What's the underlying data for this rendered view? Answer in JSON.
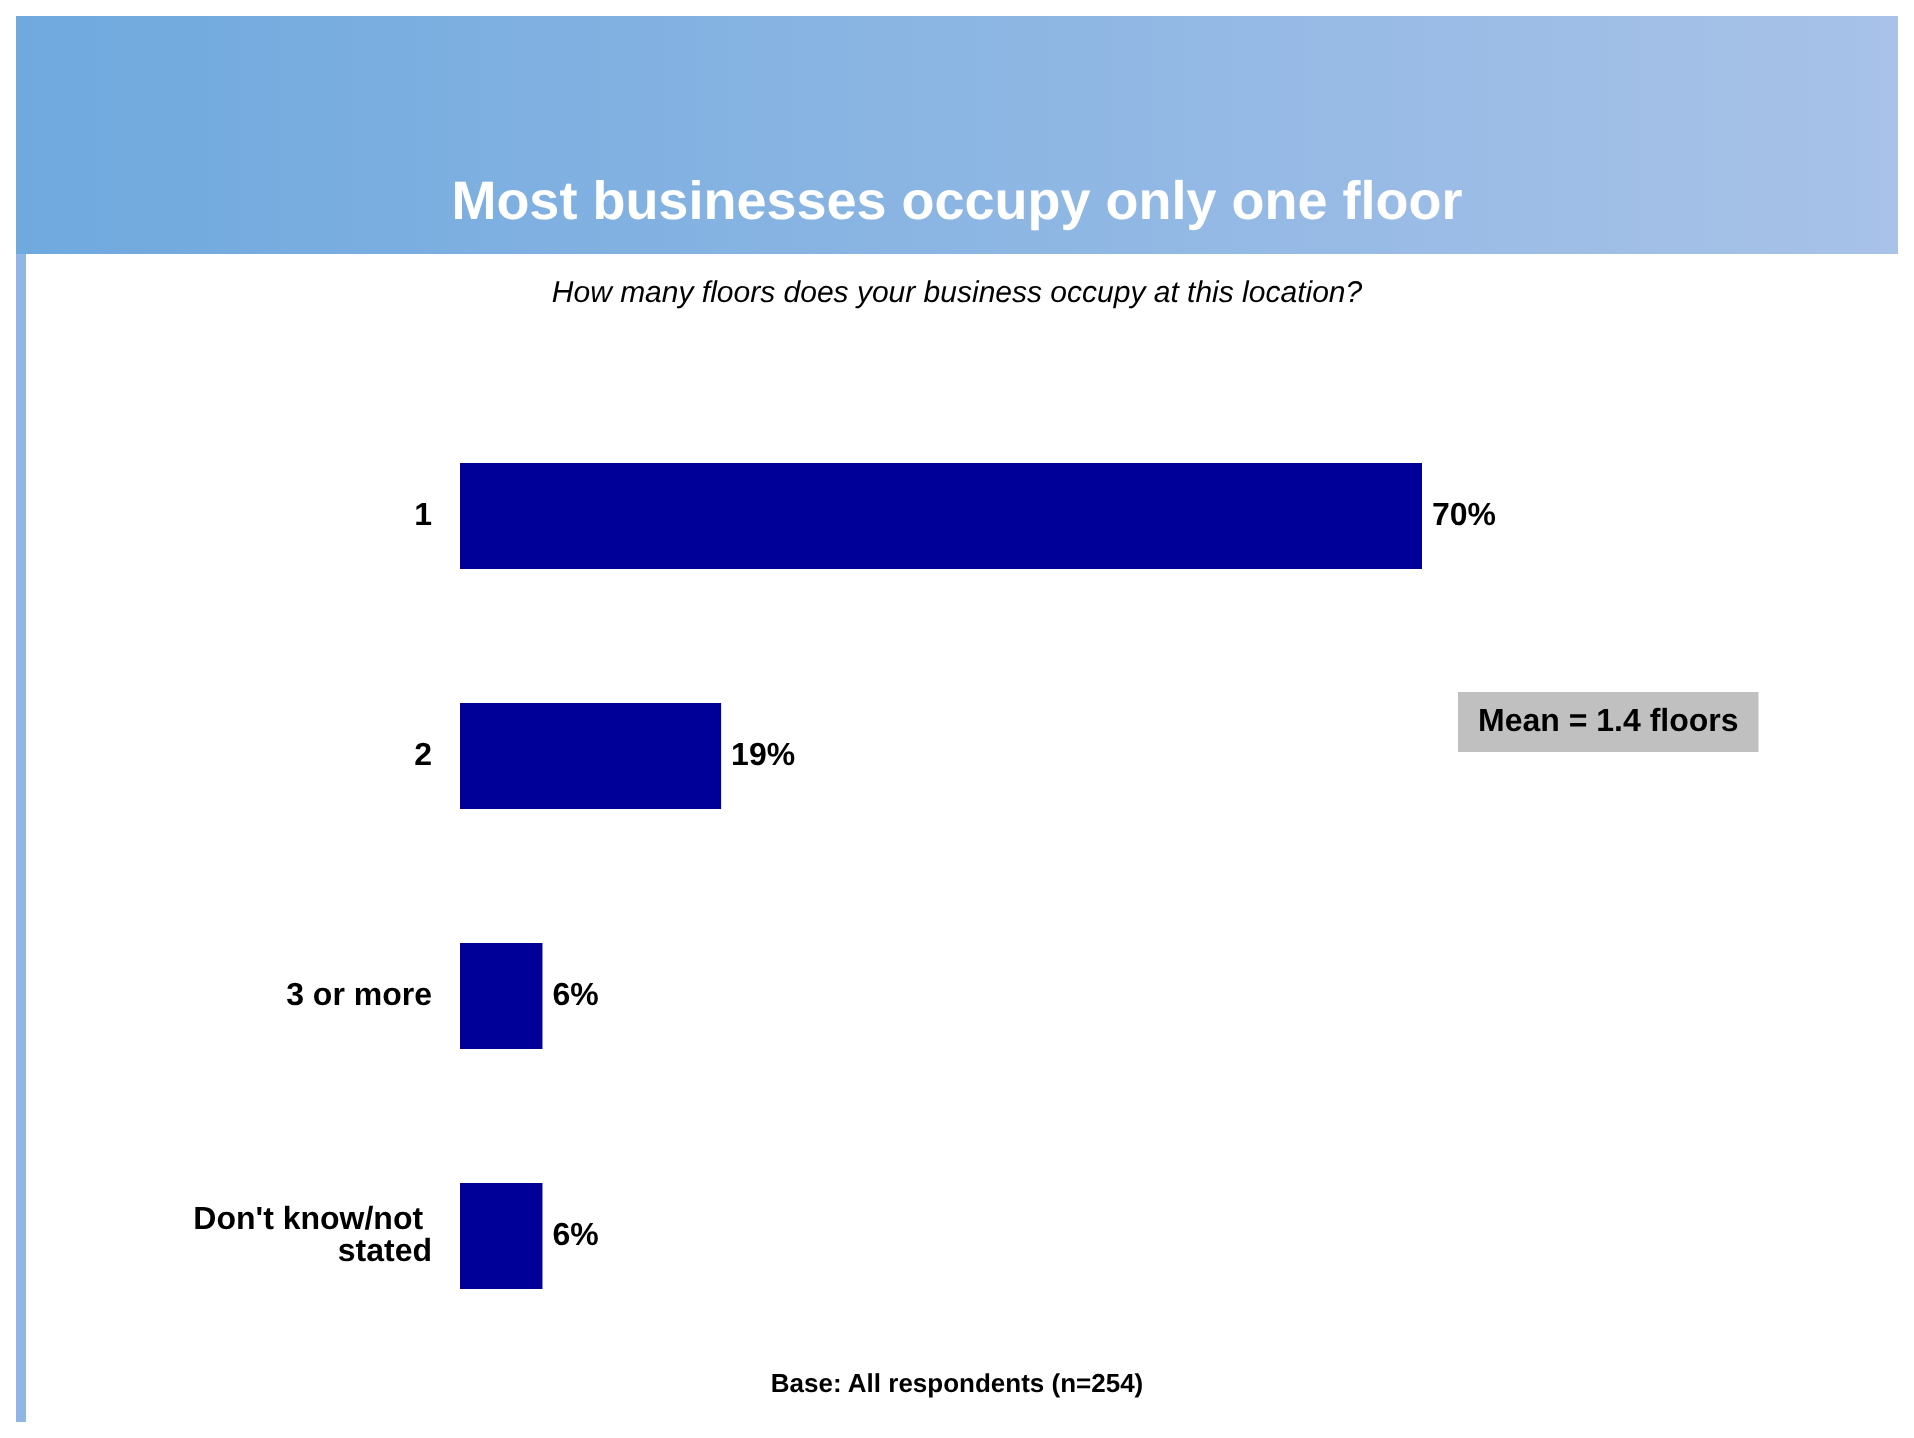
{
  "chart_data": {
    "type": "bar",
    "orientation": "horizontal",
    "title": "Most businesses occupy only one floor",
    "subtitle": "How many floors does your business occupy at this location?",
    "categories": [
      "1",
      "2",
      "3 or more",
      "Don't know/not stated"
    ],
    "values": [
      70,
      19,
      6,
      6
    ],
    "value_labels": [
      "70%",
      "19%",
      "6%",
      "6%"
    ],
    "color": "#000099",
    "annotations": [
      "Mean = 1.4 floors",
      "Base: All respondents (n=254)"
    ],
    "grid": false
  }
}
